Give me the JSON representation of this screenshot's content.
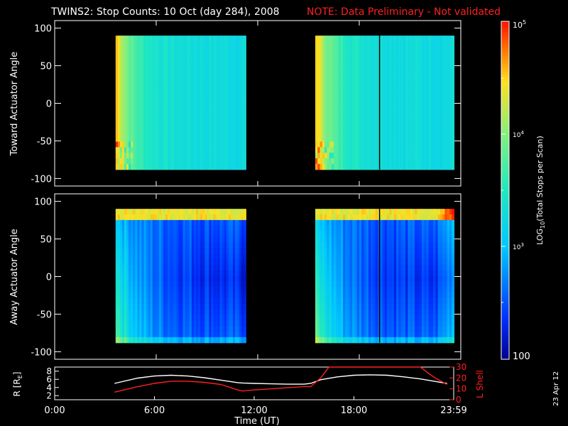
{
  "title": {
    "main": "TWINS2: Stop Counts: 10 Oct (day 284), 2008",
    "note": "NOTE: Data Preliminary - Not validated",
    "note_color": "#ff2020"
  },
  "date_stamp": "23 Apr 12",
  "chart_data": [
    {
      "type": "heatmap",
      "name": "toward",
      "ylabel": "Toward Actuator Angle",
      "ylim": [
        -110,
        110
      ],
      "yticks": [
        -100,
        -50,
        0,
        50,
        100
      ],
      "ytick_labels": [
        "-100",
        "-50",
        "0",
        "50",
        "100"
      ],
      "xlim_hours": [
        0,
        24
      ],
      "data_blocks": [
        {
          "start_hour": 3.6,
          "end_hour": 11.3,
          "angle_range": [
            -88,
            90
          ]
        },
        {
          "start_hour": 15.4,
          "end_hour": 23.6,
          "angle_range": [
            -88,
            90
          ]
        }
      ],
      "cursor_hour": 19.2,
      "log10_counts_description": "high (~4.3) near start of each block, decreasing to ~3.2 later"
    },
    {
      "type": "heatmap",
      "name": "away",
      "ylabel": "Away Actuator Angle",
      "ylim": [
        -110,
        110
      ],
      "yticks": [
        -100,
        -50,
        0,
        50,
        100
      ],
      "ytick_labels": [
        "-100",
        "-50",
        "0",
        "50",
        "100"
      ],
      "xlim_hours": [
        0,
        24
      ],
      "data_blocks": [
        {
          "start_hour": 3.6,
          "end_hour": 11.3,
          "angle_range": [
            -88,
            90
          ]
        },
        {
          "start_hour": 15.4,
          "end_hour": 23.6,
          "angle_range": [
            -88,
            90
          ]
        }
      ],
      "cursor_hour": 19.2,
      "log10_counts_description": "mostly low (~2.4) in middle angles, high near +90 edge"
    },
    {
      "type": "line",
      "name": "orbit",
      "ylabel": "R [RE]",
      "ylabel_parts": {
        "r": "R [R",
        "sub": "E",
        "close": "]"
      },
      "y2label": "L Shell",
      "ylim": [
        1,
        9
      ],
      "yticks": [
        2,
        4,
        6,
        8
      ],
      "ytick_labels": [
        "2",
        "4",
        "6",
        "8"
      ],
      "y2lim": [
        0,
        30
      ],
      "y2ticks": [
        0,
        10,
        20,
        30
      ],
      "y2tick_labels": [
        "0",
        "10",
        "20",
        "30"
      ],
      "xlabel": "Time (UT)",
      "xticks_hours": [
        0,
        6,
        12,
        18,
        24
      ],
      "xtick_labels": [
        "0:00",
        "6:00",
        "12:00",
        "18:00",
        "23:59"
      ],
      "series": [
        {
          "name": "R",
          "color": "#ffffff",
          "x": [
            3.6,
            5,
            6,
            7,
            8,
            9,
            10,
            11,
            11.3,
            12,
            13,
            14,
            15,
            15.4,
            16,
            17,
            18,
            19,
            20,
            21,
            22,
            23,
            23.6
          ],
          "y": [
            5.0,
            6.3,
            6.8,
            7.0,
            6.8,
            6.4,
            5.8,
            5.2,
            5.1,
            5.0,
            4.9,
            4.8,
            4.8,
            5.0,
            5.9,
            6.6,
            7.0,
            7.1,
            7.0,
            6.6,
            6.1,
            5.4,
            5.0
          ]
        },
        {
          "name": "L Shell",
          "color": "#ff2020",
          "x": [
            3.6,
            5,
            6,
            7,
            8,
            9,
            10,
            11,
            11.3,
            12,
            13,
            14,
            15,
            15.4,
            16,
            16.5,
            22.0,
            22.5,
            23,
            23.6
          ],
          "y": [
            7,
            12,
            15,
            17,
            17,
            16,
            14,
            9,
            8,
            9,
            10,
            11,
            12,
            12,
            20,
            30,
            30,
            24,
            19,
            14
          ]
        }
      ]
    }
  ],
  "colorbar": {
    "label": "LOG10(Total Stops per Scan)",
    "label_parts": {
      "pre": "LOG",
      "sub": "10",
      "post": "(Total Stops per Scan)"
    },
    "range_log10": [
      2,
      5
    ],
    "tick_labels": {
      "t5": "10",
      "t5_exp": "5",
      "t4": "10",
      "t4_exp": "4",
      "t3": "10",
      "t3_exp": "3",
      "t2": "100"
    }
  }
}
